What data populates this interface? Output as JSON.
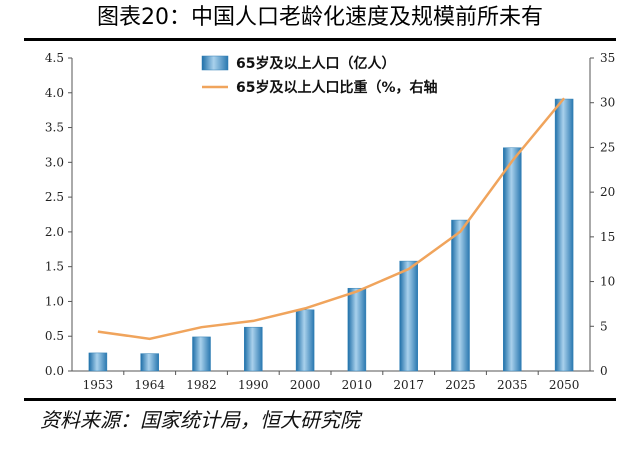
{
  "title": "图表20：中国人口老龄化速度及规模前所未有",
  "source": "资料来源：国家统计局，恒大研究院",
  "colors": {
    "bar": "#2e7fb5",
    "bar_light": "#a9d1ec",
    "line": "#f0a45c",
    "axis": "#555555"
  },
  "chart_data": {
    "type": "bar",
    "categories": [
      "1953",
      "1964",
      "1982",
      "1990",
      "2000",
      "2010",
      "2017",
      "2025",
      "2035",
      "2050"
    ],
    "series": [
      {
        "name": "65岁及以上人口（亿人）",
        "type": "bar",
        "axis": "left",
        "values": [
          0.26,
          0.25,
          0.49,
          0.63,
          0.88,
          1.19,
          1.58,
          2.17,
          3.21,
          3.91
        ]
      },
      {
        "name": "65岁及以上人口比重（%，右轴",
        "type": "line",
        "axis": "right",
        "values": [
          4.4,
          3.6,
          4.9,
          5.6,
          7.0,
          8.9,
          11.4,
          15.6,
          23.5,
          30.5
        ]
      }
    ],
    "left_axis": {
      "min": 0,
      "max": 4.5,
      "step": 0.5,
      "ticks": [
        "0.0",
        "0.5",
        "1.0",
        "1.5",
        "2.0",
        "2.5",
        "3.0",
        "3.5",
        "4.0",
        "4.5"
      ]
    },
    "right_axis": {
      "min": 0,
      "max": 35,
      "step": 5,
      "ticks": [
        "0",
        "5",
        "10",
        "15",
        "20",
        "25",
        "30",
        "35"
      ]
    },
    "grid": false,
    "legend_position": "top"
  }
}
